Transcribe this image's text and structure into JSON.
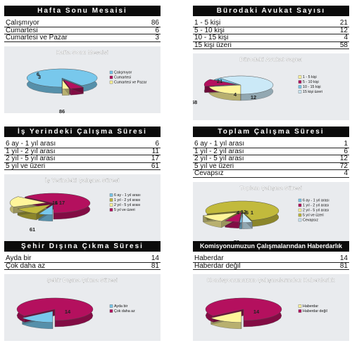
{
  "colors": {
    "blue": "#78c8ec",
    "magenta": "#b4105e",
    "yellow": "#fff59a",
    "olive": "#c2ba3c",
    "lightblue": "#cbe9f7",
    "purple": "#7a2e8e",
    "chart_bg": "#e9ebee",
    "header_bg": "#0b0b0b"
  },
  "panels": [
    {
      "heading": "Hafta Sonu Mesaisi",
      "rows": [
        {
          "label": "Çalışmıyor",
          "value": "86"
        },
        {
          "label": "Cumartesi",
          "value": "6"
        },
        {
          "label": "Cumartesi ve Pazar",
          "value": "3"
        }
      ]
    },
    {
      "heading": "Bürodaki Avukat Sayısı",
      "rows": [
        {
          "label": "1 - 5 kişi",
          "value": "21"
        },
        {
          "label": "5 - 10 kişi",
          "value": "12"
        },
        {
          "label": "10 - 15 kişi",
          "value": "4"
        },
        {
          "label": "15 kişi üzeri",
          "value": "58"
        }
      ]
    },
    {
      "heading": "İş Yerindeki Çalışma Süresi",
      "rows": [
        {
          "label": "6 ay - 1 yıl arası",
          "value": "6"
        },
        {
          "label": "1 yıl - 2 yıl arası",
          "value": "11"
        },
        {
          "label": "2 yıl - 5 yıl arası",
          "value": "17"
        },
        {
          "label": "5 yıl ve üzeri",
          "value": "61"
        }
      ]
    },
    {
      "heading": "Toplam Çalışma Süresi",
      "rows": [
        {
          "label": "6 ay - 1 yıl arası",
          "value": "1"
        },
        {
          "label": "1 yıl - 2 yıl arası",
          "value": "6"
        },
        {
          "label": "2 yıl - 5 yıl arası",
          "value": "12"
        },
        {
          "label": "5 yıl ve üzeri",
          "value": "72"
        },
        {
          "label": "Cevapsız",
          "value": "4"
        }
      ]
    },
    {
      "heading": "Şehir Dışına Çıkma Süresi",
      "rows": [
        {
          "label": "Ayda bir",
          "value": "14"
        },
        {
          "label": "Çok daha az",
          "value": "81"
        }
      ]
    },
    {
      "heading": "Komisyonumuzun Çalışmalarından Haberdarlık",
      "rows": [
        {
          "label": "Haberdar",
          "value": "14"
        },
        {
          "label": "Haberdar değil",
          "value": "81"
        }
      ]
    }
  ],
  "chart_data": [
    {
      "type": "pie",
      "title": "Hafta Sonu Mesaisi",
      "categories": [
        "Çalışmıyor",
        "Cumartesi",
        "Cumartesi ve Pazar"
      ],
      "values": [
        86,
        6,
        3
      ],
      "colors": [
        "#78c8ec",
        "#b4105e",
        "#fff59a"
      ],
      "legend": "right"
    },
    {
      "type": "pie",
      "title": "Bürodaki Avukat Sayısı",
      "categories": [
        "1 - 5 kişi",
        "5 - 10 kişi",
        "10 - 15 kişi",
        "15 kişi üzeri"
      ],
      "values": [
        21,
        12,
        4,
        58
      ],
      "colors": [
        "#fff59a",
        "#b4105e",
        "#78c8ec",
        "#cbe9f7"
      ],
      "legend": "right"
    },
    {
      "type": "pie",
      "title": "İş Yerindeki Çalışma Süresi",
      "categories": [
        "6 ay - 1 yıl arası",
        "1 yıl - 2 yıl arası",
        "2 yıl - 5 yıl arası",
        "5 yıl ve üzeri"
      ],
      "values": [
        6,
        11,
        17,
        61
      ],
      "colors": [
        "#78c8ec",
        "#c2ba3c",
        "#fff59a",
        "#b4105e"
      ],
      "legend": "right"
    },
    {
      "type": "pie",
      "title": "Toplam Çalışma Süresi",
      "categories": [
        "6 ay - 1 yıl arası",
        "1 yıl - 2 yıl arası",
        "2 yıl - 5 yıl arası",
        "5 yıl ve üzeri",
        "Cevapsız"
      ],
      "values": [
        1,
        6,
        12,
        72,
        4
      ],
      "colors": [
        "#78c8ec",
        "#b4105e",
        "#fff59a",
        "#c2ba3c",
        "#cbe9f7"
      ],
      "legend": "right"
    },
    {
      "type": "pie",
      "title": "Şehir Dışına Çıkma Süresi",
      "categories": [
        "Ayda bir",
        "Çok daha az"
      ],
      "values": [
        14,
        81
      ],
      "colors": [
        "#78c8ec",
        "#b4105e"
      ],
      "legend": "right"
    },
    {
      "type": "pie",
      "title": "Komisyonumuzun Çalışmalarından Haberdarlık",
      "categories": [
        "Haberdar",
        "Haberdar değil"
      ],
      "values": [
        14,
        81
      ],
      "colors": [
        "#fff59a",
        "#b4105e"
      ],
      "legend": "right"
    }
  ]
}
